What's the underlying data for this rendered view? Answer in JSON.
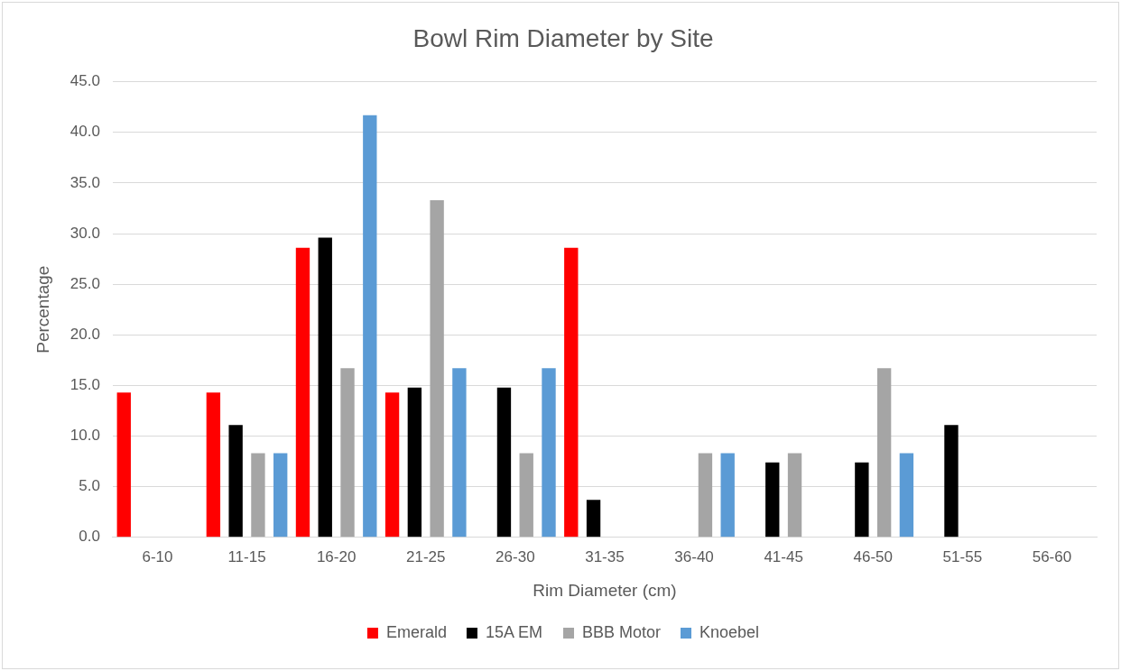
{
  "chart_data": {
    "type": "bar",
    "title": "Bowl Rim Diameter by Site",
    "xlabel": "Rim Diameter (cm)",
    "ylabel": "Percentage",
    "categories": [
      "6-10",
      "11-15",
      "16-20",
      "21-25",
      "26-30",
      "31-35",
      "36-40",
      "41-45",
      "46-50",
      "51-55",
      "56-60"
    ],
    "series": [
      {
        "name": "Emerald",
        "color": "#ff0000",
        "values": [
          14.3,
          14.3,
          28.6,
          14.3,
          0,
          28.6,
          0,
          0,
          0,
          0,
          0
        ]
      },
      {
        "name": "15A EM",
        "color": "#000000",
        "values": [
          0,
          11.1,
          29.6,
          14.8,
          14.8,
          3.7,
          0,
          7.4,
          7.4,
          11.1,
          0
        ]
      },
      {
        "name": "BBB Motor",
        "color": "#a5a5a5",
        "values": [
          0,
          8.3,
          16.7,
          33.3,
          8.3,
          0,
          8.3,
          8.3,
          16.7,
          0,
          0
        ]
      },
      {
        "name": "Knoebel",
        "color": "#5b9bd5",
        "values": [
          0,
          8.3,
          41.7,
          16.7,
          16.7,
          0,
          8.3,
          0,
          8.3,
          0,
          0
        ]
      }
    ],
    "ylim": [
      0,
      45
    ],
    "yticks": [
      {
        "value": 0,
        "label": "0.0"
      },
      {
        "value": 5,
        "label": "5.0"
      },
      {
        "value": 10,
        "label": "10.0"
      },
      {
        "value": 15,
        "label": "15.0"
      },
      {
        "value": 20,
        "label": "20.0"
      },
      {
        "value": 25,
        "label": "25.0"
      },
      {
        "value": 30,
        "label": "30.0"
      },
      {
        "value": 35,
        "label": "35.0"
      },
      {
        "value": 40,
        "label": "40.0"
      },
      {
        "value": 45,
        "label": "45.0"
      }
    ],
    "grid": "y",
    "legend": "bottom"
  }
}
